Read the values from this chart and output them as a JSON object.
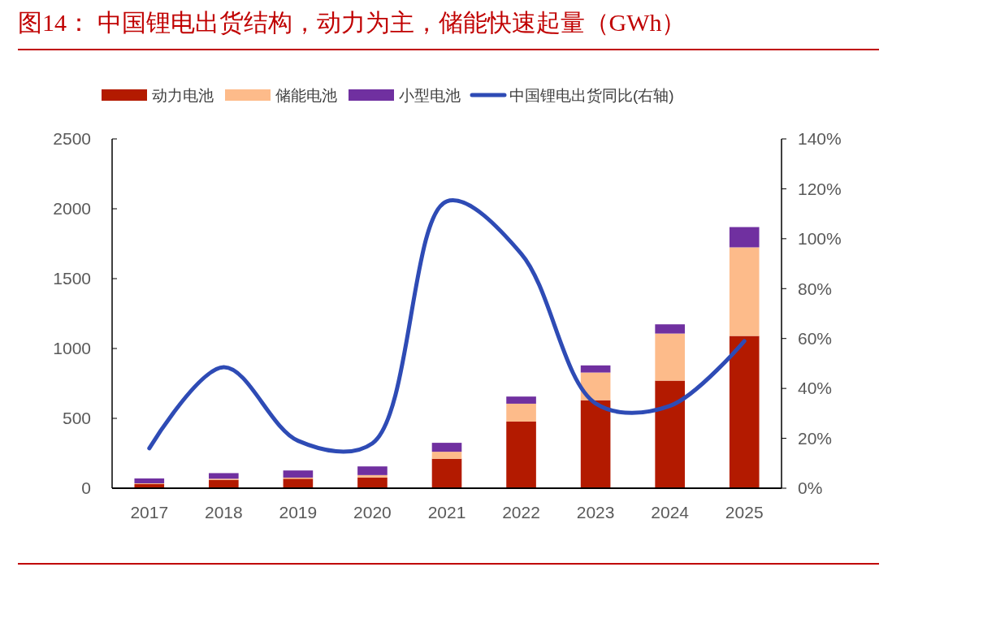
{
  "chart_data": {
    "type": "bar",
    "title": "图14：  中国锂电出货结构，动力为主，储能快速起量（GWh）",
    "stacked": true,
    "legend": "top",
    "categories": [
      "2017",
      "2018",
      "2019",
      "2020",
      "2021",
      "2022",
      "2023",
      "2024",
      "2025"
    ],
    "series": [
      {
        "name": "动力电池",
        "color": "#b31a00",
        "values": [
          29,
          60,
          68,
          77,
          211,
          477,
          630,
          770,
          1090
        ]
      },
      {
        "name": "储能电池",
        "color": "#fdbb8a",
        "values": [
          6,
          8,
          8,
          17,
          50,
          128,
          198,
          337,
          634
        ]
      },
      {
        "name": "小型电池",
        "color": "#7030a0",
        "values": [
          35,
          40,
          51,
          62,
          64,
          51,
          51,
          66,
          145
        ]
      },
      {
        "name": "中国锂电出货同比(右轴)",
        "type": "line",
        "axis": "y2",
        "color": "#2e4bb5",
        "values": [
          16,
          48.5,
          19,
          18,
          115,
          94,
          34,
          33,
          59
        ]
      }
    ],
    "ylim": [
      0,
      2500
    ],
    "yticks": [
      0,
      500,
      1000,
      1500,
      2000,
      2500
    ],
    "y2lim": [
      0,
      140
    ],
    "y2ticks": [
      {
        "value": 0,
        "label": "0%"
      },
      {
        "value": 20,
        "label": "20%"
      },
      {
        "value": 40,
        "label": "40%"
      },
      {
        "value": 60,
        "label": "60%"
      },
      {
        "value": 80,
        "label": "80%"
      },
      {
        "value": 100,
        "label": "100%"
      },
      {
        "value": 120,
        "label": "120%"
      },
      {
        "value": 140,
        "label": "140%"
      }
    ]
  }
}
